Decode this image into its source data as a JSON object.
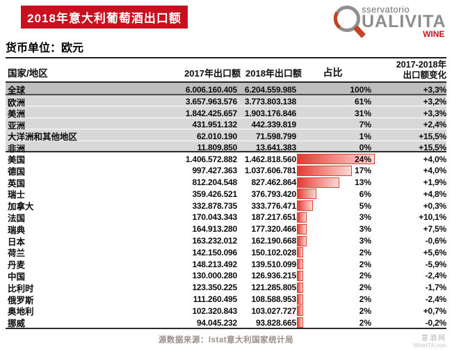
{
  "colors": {
    "accent-red": "#c8101e",
    "bar-start": "#e23a33",
    "bar-end": "#fbdad7",
    "bar-border": "#e04038",
    "row-dark": "#bebebe",
    "row-light": "#d8d8d8",
    "logo-gray": "#8c8c8c",
    "magnifier-red": "#c14328"
  },
  "logo": {
    "line1": "sservatorio",
    "line2": "UALIVITA",
    "line3": "WINE"
  },
  "footer": {
    "watermark_line1": "意酒网",
    "watermark_line2": "WineITA.com"
  },
  "chart_data": {
    "type": "table",
    "title": "2018年意大利葡萄酒出口额",
    "currency_note": "货币单位：欧元",
    "source_note": "源数据来源：Istat意大利国家统计局",
    "headers": {
      "region": "国家/地区",
      "export_2017": "2017年出口额",
      "export_2018": "2018年出口额",
      "share": "占比",
      "change_line1": "2017-2018年",
      "change_line2": "出口额变化"
    },
    "bar_max_pct": 24,
    "bar_column": "占比",
    "region_rows": [
      {
        "name": "全球",
        "v2017": "6.006.160.405",
        "v2018": "6.204.559.985",
        "share": "100%",
        "change": "+3,3%",
        "highlight": true
      },
      {
        "name": "欧洲",
        "v2017": "3.657.963.576",
        "v2018": "3.773.803.138",
        "share": "61%",
        "change": "+3,2%"
      },
      {
        "name": "美洲",
        "v2017": "1.842.425.657",
        "v2018": "1.903.176.846",
        "share": "31%",
        "change": "+3,3%"
      },
      {
        "name": "亚洲",
        "v2017": "431.951.132",
        "v2018": "442.339.819",
        "share": "7%",
        "change": "+2,4%"
      },
      {
        "name": "大洋洲和其他地区",
        "v2017": "62.010.190",
        "v2018": "71.598.799",
        "share": "1%",
        "change": "+15,5%"
      },
      {
        "name": "非洲",
        "v2017": "11.809.850",
        "v2018": "13.641.383",
        "share": "0%",
        "change": "+15,5%"
      }
    ],
    "country_rows": [
      {
        "name": "美国",
        "v2017": "1.406.572.882",
        "v2018": "1.462.818.560",
        "share": "24%",
        "share_pct": 24,
        "change": "+4,0%"
      },
      {
        "name": "德国",
        "v2017": "997.427.363",
        "v2018": "1.037.606.781",
        "share": "17%",
        "share_pct": 17,
        "change": "+4,0%"
      },
      {
        "name": "英国",
        "v2017": "812.204.548",
        "v2018": "827.462.864",
        "share": "13%",
        "share_pct": 13,
        "change": "+1,9%"
      },
      {
        "name": "瑞士",
        "v2017": "359.426.521",
        "v2018": "376.793.420",
        "share": "6%",
        "share_pct": 6,
        "change": "+4,8%"
      },
      {
        "name": "加拿大",
        "v2017": "332.878.735",
        "v2018": "333.776.471",
        "share": "5%",
        "share_pct": 5,
        "change": "+0,3%"
      },
      {
        "name": "法国",
        "v2017": "170.043.343",
        "v2018": "187.217.651",
        "share": "3%",
        "share_pct": 3,
        "change": "+10,1%"
      },
      {
        "name": "瑞典",
        "v2017": "164.913.280",
        "v2018": "177.320.466",
        "share": "3%",
        "share_pct": 3,
        "change": "+7,5%"
      },
      {
        "name": "日本",
        "v2017": "163.232.012",
        "v2018": "162.190.668",
        "share": "3%",
        "share_pct": 3,
        "change": "-0,6%"
      },
      {
        "name": "荷兰",
        "v2017": "142.150.096",
        "v2018": "150.102.028",
        "share": "2%",
        "share_pct": 2,
        "change": "+5,6%"
      },
      {
        "name": "丹麦",
        "v2017": "148.213.492",
        "v2018": "139.510.099",
        "share": "2%",
        "share_pct": 2,
        "change": "-5,9%"
      },
      {
        "name": "中国",
        "v2017": "130.000.280",
        "v2018": "126.936.215",
        "share": "2%",
        "share_pct": 2,
        "change": "-2,4%"
      },
      {
        "name": "比利时",
        "v2017": "123.350.225",
        "v2018": "121.285.805",
        "share": "2%",
        "share_pct": 2,
        "change": "-1,7%"
      },
      {
        "name": "俄罗斯",
        "v2017": "111.260.495",
        "v2018": "108.588.953",
        "share": "2%",
        "share_pct": 2,
        "change": "-2,4%"
      },
      {
        "name": "奥地利",
        "v2017": "102.320.843",
        "v2018": "103.027.727",
        "share": "2%",
        "share_pct": 2,
        "change": "+0,7%"
      },
      {
        "name": "挪威",
        "v2017": "94.045.232",
        "v2018": "93.828.665",
        "share": "2%",
        "share_pct": 2,
        "change": "-0,2%"
      }
    ]
  }
}
